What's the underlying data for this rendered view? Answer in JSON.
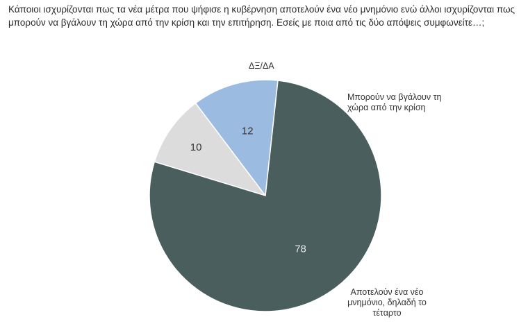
{
  "title": "Κάποιοι ισχυρίζονται πως τα νέα μέτρα που ψήφισε η κυβέρνηση αποτελούν ένα νέο μνημόνιο ενώ άλλοι ισχυρίζονται πως μπορούν να βγάλουν τη χώρα από την κρίση και την επιτήρηση. Εσείς με ποια από τις δύο απόψεις συμφωνείτε…;",
  "chart_data": {
    "type": "pie",
    "title": "Κάποιοι ισχυρίζονται πως τα νέα μέτρα που ψήφισε η κυβέρνηση αποτελούν ένα νέο μνημόνιο ενώ άλλοι ισχυρίζονται πως μπορούν να βγάλουν τη χώρα από την κρίση και την επιτήρηση. Εσείς με ποια από τις δύο απόψεις συμφωνείτε…;",
    "slices": [
      {
        "label": "ΔΞ/ΔΑ",
        "value": 10,
        "color": "#dcdcdc"
      },
      {
        "label": "Μπορούν να βγάλουν τη χώρα από την κρίση",
        "value": 12,
        "color": "#9bbbe0"
      },
      {
        "label": "Αποτελούν ένα νέο μνημόνιο, δηλαδή το τέταρτο",
        "value": 78,
        "color": "#4a5e5e"
      }
    ],
    "value_label_colors": [
      "#333333",
      "#333333",
      "#e8e8e8"
    ]
  }
}
